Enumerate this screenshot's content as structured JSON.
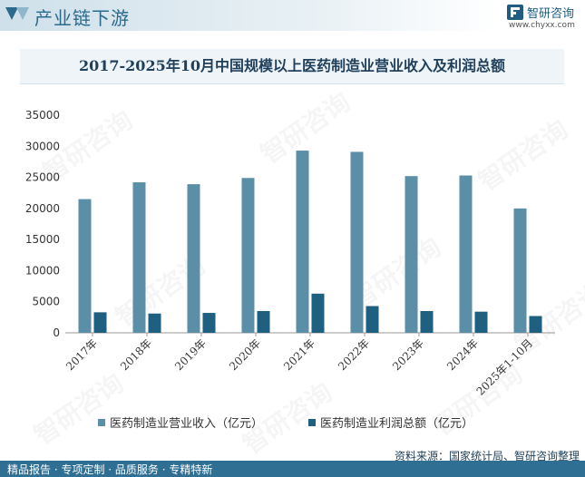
{
  "header": {
    "title": "产业链下游",
    "brand_name": "智研咨询",
    "brand_url": "www.chyxx.com"
  },
  "title": "2017-2025年10月中国规模以上医药制造业营业收入及利润总额",
  "watermark": "智研咨询",
  "colors": {
    "revenue": "#5b8fa8",
    "profit": "#1f5f80",
    "header_text": "#2a6a8c",
    "footer_bg": "#2f6f93"
  },
  "chart_data": {
    "type": "bar",
    "categories": [
      "2017年",
      "2018年",
      "2019年",
      "2020年",
      "2021年",
      "2022年",
      "2023年",
      "2024年",
      "2025年1-10月"
    ],
    "series": [
      {
        "name": "医药制造业营业收入（亿元）",
        "values": [
          21500,
          24200,
          23900,
          24900,
          29300,
          29100,
          25200,
          25300,
          20000
        ]
      },
      {
        "name": "医药制造业利润总额（亿元）",
        "values": [
          3300,
          3100,
          3200,
          3500,
          6300,
          4300,
          3500,
          3400,
          2700
        ]
      }
    ],
    "ylim": [
      0,
      35000
    ],
    "yticks": [
      0,
      5000,
      10000,
      15000,
      20000,
      25000,
      30000,
      35000
    ],
    "grid": false,
    "legend_position": "bottom"
  },
  "source": "资料来源：国家统计局、智研咨询整理",
  "footer": {
    "text": "精品报告 · 专项定制 · 品质服务 · 专精特新"
  }
}
